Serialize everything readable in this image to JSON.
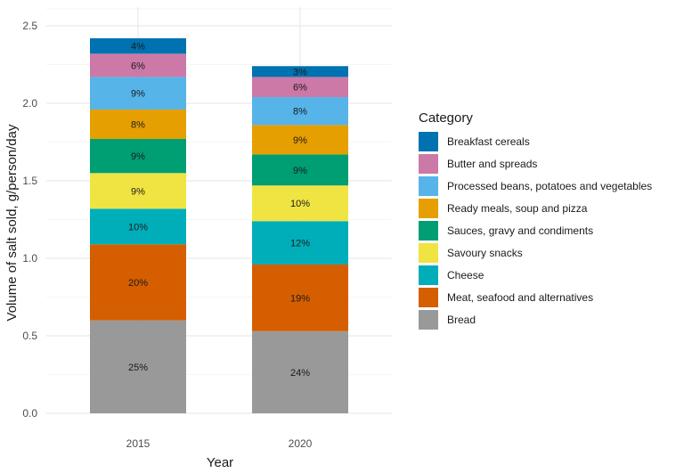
{
  "chart_data": {
    "type": "bar",
    "stacked": true,
    "xlabel": "Year",
    "ylabel": "Volume of salt sold, g/person/day",
    "ylim": [
      0,
      2.5
    ],
    "yticks": [
      "0.0",
      "0.5",
      "1.0",
      "1.5",
      "2.0",
      "2.5"
    ],
    "categories": [
      "2015",
      "2020"
    ],
    "legend": {
      "title": "Category",
      "position": "right"
    },
    "grid": true,
    "series": [
      {
        "name": "Bread",
        "color": "#999999",
        "values": [
          0.6,
          0.53
        ],
        "labels": [
          "25%",
          "24%"
        ]
      },
      {
        "name": "Meat, seafood and alternatives",
        "color": "#D55E00",
        "values": [
          0.49,
          0.43
        ],
        "labels": [
          "20%",
          "19%"
        ]
      },
      {
        "name": "Cheese",
        "color": "#00AEBA",
        "values": [
          0.23,
          0.28
        ],
        "labels": [
          "10%",
          "12%"
        ]
      },
      {
        "name": "Savoury snacks",
        "color": "#F0E442",
        "values": [
          0.23,
          0.23
        ],
        "labels": [
          "9%",
          "10%"
        ]
      },
      {
        "name": "Sauces, gravy and condiments",
        "color": "#009E73",
        "values": [
          0.22,
          0.2
        ],
        "labels": [
          "9%",
          "9%"
        ]
      },
      {
        "name": "Ready meals, soup and pizza",
        "color": "#E69F00",
        "values": [
          0.19,
          0.19
        ],
        "labels": [
          "8%",
          "9%"
        ]
      },
      {
        "name": "Processed beans, potatoes and vegetables",
        "color": "#56B4E9",
        "values": [
          0.21,
          0.18
        ],
        "labels": [
          "9%",
          "8%"
        ]
      },
      {
        "name": "Butter and spreads",
        "color": "#CC79A7",
        "values": [
          0.15,
          0.13
        ],
        "labels": [
          "6%",
          "6%"
        ]
      },
      {
        "name": "Breakfast cereals",
        "color": "#0072B2",
        "values": [
          0.1,
          0.07
        ],
        "labels": [
          "4%",
          "3%"
        ]
      }
    ]
  }
}
